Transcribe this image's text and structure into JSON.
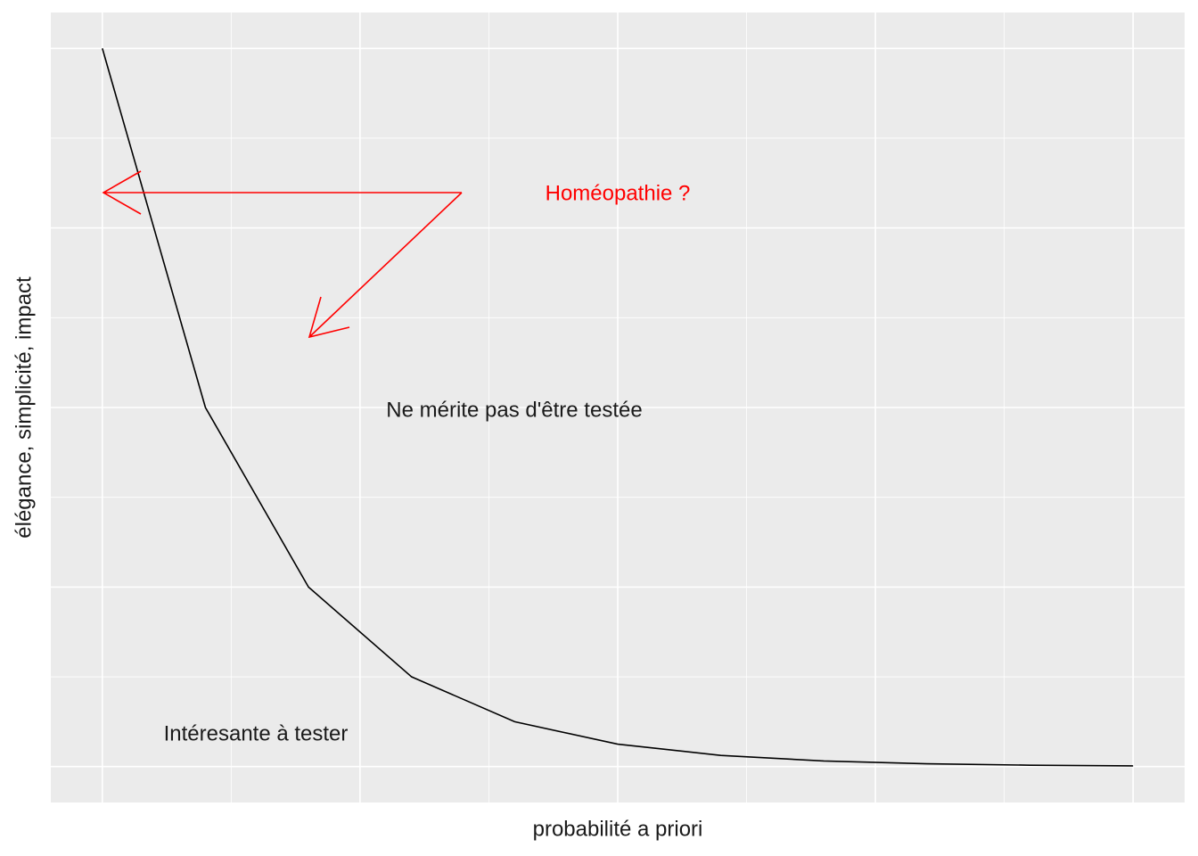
{
  "chart_data": {
    "type": "line",
    "x_label": "probabilité a priori",
    "y_label": "élégance, simplicité, impact",
    "x": [
      0,
      1,
      2,
      3,
      4,
      5,
      6,
      7,
      8,
      9,
      10
    ],
    "values": [
      1,
      0.5,
      0.25,
      0.125,
      0.0625,
      0.03125,
      0.015625,
      0.0078125,
      0.00390625,
      0.001953125,
      0.0009765625
    ],
    "color": "#000000",
    "xlim": [
      -0.5,
      10.5
    ],
    "ylim": [
      -0.05,
      1.05
    ],
    "xticks": [
      0,
      2.5,
      5,
      7.5,
      10
    ],
    "yticks": [
      0,
      0.25,
      0.5,
      0.75,
      1
    ],
    "grid": true,
    "annotations": [
      {
        "text": "Homéopathie ?",
        "color": "#ff0000"
      },
      {
        "text": "Ne mérite pas d'être testée",
        "color": "#1a1a1a"
      },
      {
        "text": "Intéresante à tester",
        "color": "#1a1a1a"
      }
    ]
  }
}
